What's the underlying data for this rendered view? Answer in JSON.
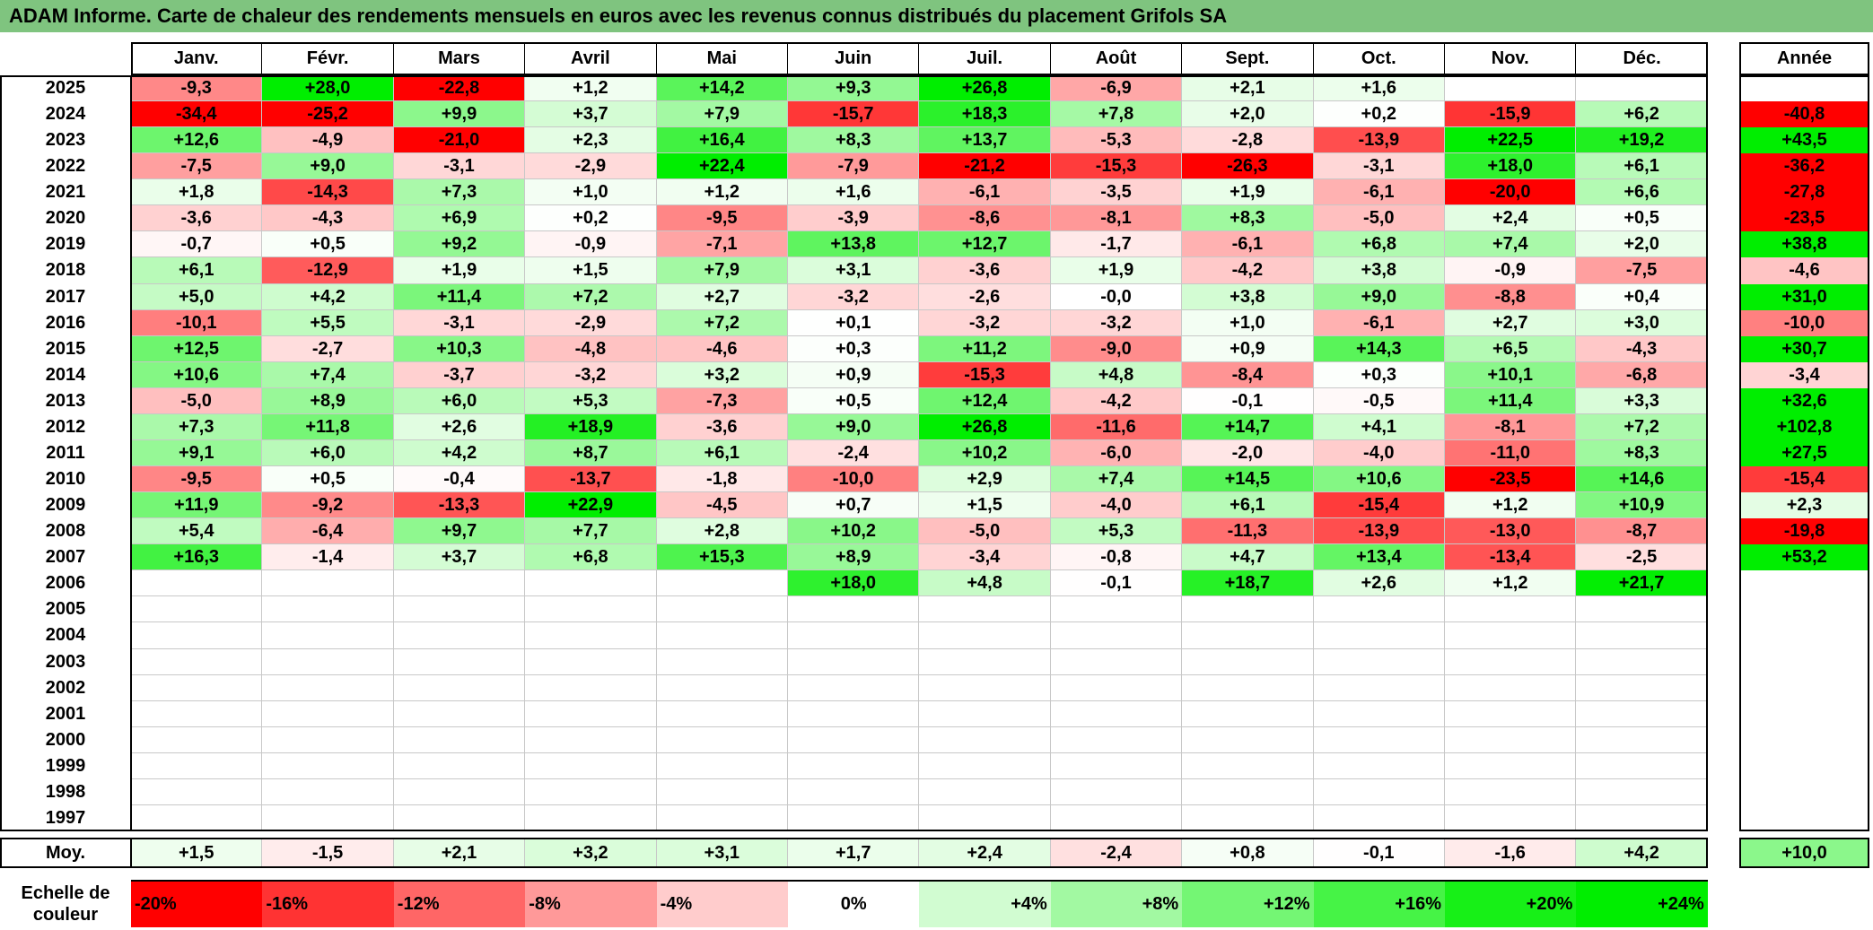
{
  "title": "ADAM Informe. Carte de chaleur des rendements mensuels en euros avec les revenus connus distribués du placement Grifols SA",
  "chart_data": {
    "type": "heatmap",
    "months": [
      "Janv.",
      "Févr.",
      "Mars",
      "Avril",
      "Mai",
      "Juin",
      "Juil.",
      "Août",
      "Sept.",
      "Oct.",
      "Nov.",
      "Déc."
    ],
    "year_header": "Année",
    "rows": [
      {
        "year": "2025",
        "values": [
          "-9,3",
          "+28,0",
          "-22,8",
          "+1,2",
          "+14,2",
          "+9,3",
          "+26,8",
          "-6,9",
          "+2,1",
          "+1,6",
          "",
          ""
        ],
        "annual": ""
      },
      {
        "year": "2024",
        "values": [
          "-34,4",
          "-25,2",
          "+9,9",
          "+3,7",
          "+7,9",
          "-15,7",
          "+18,3",
          "+7,8",
          "+2,0",
          "+0,2",
          "-15,9",
          "+6,2"
        ],
        "annual": "-40,8"
      },
      {
        "year": "2023",
        "values": [
          "+12,6",
          "-4,9",
          "-21,0",
          "+2,3",
          "+16,4",
          "+8,3",
          "+13,7",
          "-5,3",
          "-2,8",
          "-13,9",
          "+22,5",
          "+19,2"
        ],
        "annual": "+43,5"
      },
      {
        "year": "2022",
        "values": [
          "-7,5",
          "+9,0",
          "-3,1",
          "-2,9",
          "+22,4",
          "-7,9",
          "-21,2",
          "-15,3",
          "-26,3",
          "-3,1",
          "+18,0",
          "+6,1"
        ],
        "annual": "-36,2"
      },
      {
        "year": "2021",
        "values": [
          "+1,8",
          "-14,3",
          "+7,3",
          "+1,0",
          "+1,2",
          "+1,6",
          "-6,1",
          "-3,5",
          "+1,9",
          "-6,1",
          "-20,0",
          "+6,6"
        ],
        "annual": "-27,8"
      },
      {
        "year": "2020",
        "values": [
          "-3,6",
          "-4,3",
          "+6,9",
          "+0,2",
          "-9,5",
          "-3,9",
          "-8,6",
          "-8,1",
          "+8,3",
          "-5,0",
          "+2,4",
          "+0,5"
        ],
        "annual": "-23,5"
      },
      {
        "year": "2019",
        "values": [
          "-0,7",
          "+0,5",
          "+9,2",
          "-0,9",
          "-7,1",
          "+13,8",
          "+12,7",
          "-1,7",
          "-6,1",
          "+6,8",
          "+7,4",
          "+2,0"
        ],
        "annual": "+38,8"
      },
      {
        "year": "2018",
        "values": [
          "+6,1",
          "-12,9",
          "+1,9",
          "+1,5",
          "+7,9",
          "+3,1",
          "-3,6",
          "+1,9",
          "-4,2",
          "+3,8",
          "-0,9",
          "-7,5"
        ],
        "annual": "-4,6"
      },
      {
        "year": "2017",
        "values": [
          "+5,0",
          "+4,2",
          "+11,4",
          "+7,2",
          "+2,7",
          "-3,2",
          "-2,6",
          "-0,0",
          "+3,8",
          "+9,0",
          "-8,8",
          "+0,4"
        ],
        "annual": "+31,0"
      },
      {
        "year": "2016",
        "values": [
          "-10,1",
          "+5,5",
          "-3,1",
          "-2,9",
          "+7,2",
          "+0,1",
          "-3,2",
          "-3,2",
          "+1,0",
          "-6,1",
          "+2,7",
          "+3,0"
        ],
        "annual": "-10,0"
      },
      {
        "year": "2015",
        "values": [
          "+12,5",
          "-2,7",
          "+10,3",
          "-4,8",
          "-4,6",
          "+0,3",
          "+11,2",
          "-9,0",
          "+0,9",
          "+14,3",
          "+6,5",
          "-4,3"
        ],
        "annual": "+30,7"
      },
      {
        "year": "2014",
        "values": [
          "+10,6",
          "+7,4",
          "-3,7",
          "-3,2",
          "+3,2",
          "+0,9",
          "-15,3",
          "+4,8",
          "-8,4",
          "+0,3",
          "+10,1",
          "-6,8"
        ],
        "annual": "-3,4"
      },
      {
        "year": "2013",
        "values": [
          "-5,0",
          "+8,9",
          "+6,0",
          "+5,3",
          "-7,3",
          "+0,5",
          "+12,4",
          "-4,2",
          "-0,1",
          "-0,5",
          "+11,4",
          "+3,3"
        ],
        "annual": "+32,6"
      },
      {
        "year": "2012",
        "values": [
          "+7,3",
          "+11,8",
          "+2,6",
          "+18,9",
          "-3,6",
          "+9,0",
          "+26,8",
          "-11,6",
          "+14,7",
          "+4,1",
          "-8,1",
          "+7,2"
        ],
        "annual": "+102,8"
      },
      {
        "year": "2011",
        "values": [
          "+9,1",
          "+6,0",
          "+4,2",
          "+8,7",
          "+6,1",
          "-2,4",
          "+10,2",
          "-6,0",
          "-2,0",
          "-4,0",
          "-11,0",
          "+8,3"
        ],
        "annual": "+27,5"
      },
      {
        "year": "2010",
        "values": [
          "-9,5",
          "+0,5",
          "-0,4",
          "-13,7",
          "-1,8",
          "-10,0",
          "+2,9",
          "+7,4",
          "+14,5",
          "+10,6",
          "-23,5",
          "+14,6"
        ],
        "annual": "-15,4"
      },
      {
        "year": "2009",
        "values": [
          "+11,9",
          "-9,2",
          "-13,3",
          "+22,9",
          "-4,5",
          "+0,7",
          "+1,5",
          "-4,0",
          "+6,1",
          "-15,4",
          "+1,2",
          "+10,9"
        ],
        "annual": "+2,3"
      },
      {
        "year": "2008",
        "values": [
          "+5,4",
          "-6,4",
          "+9,7",
          "+7,7",
          "+2,8",
          "+10,2",
          "-5,0",
          "+5,3",
          "-11,3",
          "-13,9",
          "-13,0",
          "-8,7"
        ],
        "annual": "-19,8"
      },
      {
        "year": "2007",
        "values": [
          "+16,3",
          "-1,4",
          "+3,7",
          "+6,8",
          "+15,3",
          "+8,9",
          "-3,4",
          "-0,8",
          "+4,7",
          "+13,4",
          "-13,4",
          "-2,5"
        ],
        "annual": "+53,2"
      },
      {
        "year": "2006",
        "values": [
          "",
          "",
          "",
          "",
          "",
          "+18,0",
          "+4,8",
          "-0,1",
          "+18,7",
          "+2,6",
          "+1,2",
          "+21,7"
        ],
        "annual": ""
      },
      {
        "year": "2005",
        "values": [
          "",
          "",
          "",
          "",
          "",
          "",
          "",
          "",
          "",
          "",
          "",
          ""
        ],
        "annual": ""
      },
      {
        "year": "2004",
        "values": [
          "",
          "",
          "",
          "",
          "",
          "",
          "",
          "",
          "",
          "",
          "",
          ""
        ],
        "annual": ""
      },
      {
        "year": "2003",
        "values": [
          "",
          "",
          "",
          "",
          "",
          "",
          "",
          "",
          "",
          "",
          "",
          ""
        ],
        "annual": ""
      },
      {
        "year": "2002",
        "values": [
          "",
          "",
          "",
          "",
          "",
          "",
          "",
          "",
          "",
          "",
          "",
          ""
        ],
        "annual": ""
      },
      {
        "year": "2001",
        "values": [
          "",
          "",
          "",
          "",
          "",
          "",
          "",
          "",
          "",
          "",
          "",
          ""
        ],
        "annual": ""
      },
      {
        "year": "2000",
        "values": [
          "",
          "",
          "",
          "",
          "",
          "",
          "",
          "",
          "",
          "",
          "",
          ""
        ],
        "annual": ""
      },
      {
        "year": "1999",
        "values": [
          "",
          "",
          "",
          "",
          "",
          "",
          "",
          "",
          "",
          "",
          "",
          ""
        ],
        "annual": ""
      },
      {
        "year": "1998",
        "values": [
          "",
          "",
          "",
          "",
          "",
          "",
          "",
          "",
          "",
          "",
          "",
          ""
        ],
        "annual": ""
      },
      {
        "year": "1997",
        "values": [
          "",
          "",
          "",
          "",
          "",
          "",
          "",
          "",
          "",
          "",
          "",
          ""
        ],
        "annual": ""
      }
    ],
    "average": {
      "label": "Moy.",
      "values": [
        "+1,5",
        "-1,5",
        "+2,1",
        "+3,2",
        "+3,1",
        "+1,7",
        "+2,4",
        "-2,4",
        "+0,8",
        "-0,1",
        "-1,6",
        "+4,2"
      ],
      "annual": "+10,0"
    },
    "color_scale": {
      "label": "Echelle de couleur",
      "stops": [
        {
          "label": "-20%",
          "value": -20
        },
        {
          "label": "-16%",
          "value": -16
        },
        {
          "label": "-12%",
          "value": -12
        },
        {
          "label": "-8%",
          "value": -8
        },
        {
          "label": "-4%",
          "value": -4
        },
        {
          "label": "0%",
          "value": 0
        },
        {
          "label": "+4%",
          "value": 4
        },
        {
          "label": "+8%",
          "value": 8
        },
        {
          "label": "+12%",
          "value": 12
        },
        {
          "label": "+16%",
          "value": 16
        },
        {
          "label": "+20%",
          "value": 20
        },
        {
          "label": "+24%",
          "value": 24
        }
      ]
    },
    "colors": {
      "negative": "#ff0000",
      "neutral": "#ffffff",
      "positive": "#00ee00",
      "header_bar": "#7fc47f"
    }
  }
}
